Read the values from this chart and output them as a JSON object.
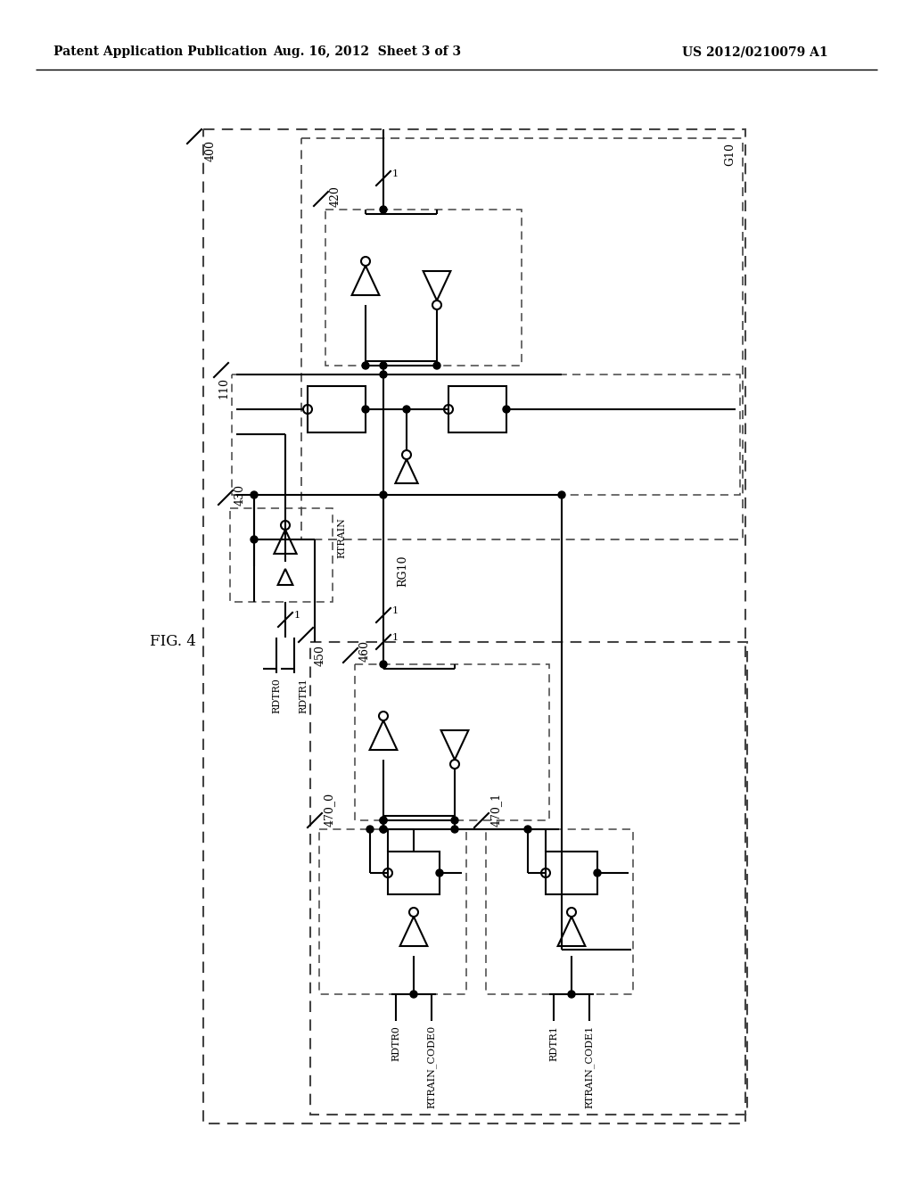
{
  "title_left": "Patent Application Publication",
  "title_mid": "Aug. 16, 2012  Sheet 3 of 3",
  "title_right": "US 2012/0210079 A1",
  "fig_label": "FIG. 4",
  "background": "#ffffff",
  "label_400": "400",
  "label_110": "110",
  "label_420": "420",
  "label_430": "430",
  "label_450": "450",
  "label_460": "460",
  "label_470_0": "470_0",
  "label_470_1": "470_1",
  "label_G10": "G10",
  "label_RG10": "RG10",
  "label_RTRAIN": "RTRAIN",
  "label_RDTR0": "RDTR0",
  "label_RDTR1": "RDTR1",
  "label_RTRAIN_CODE0": "RTRAIN_CODE0",
  "label_RTRAIN_CODE1": "RTRAIN_CODE1"
}
